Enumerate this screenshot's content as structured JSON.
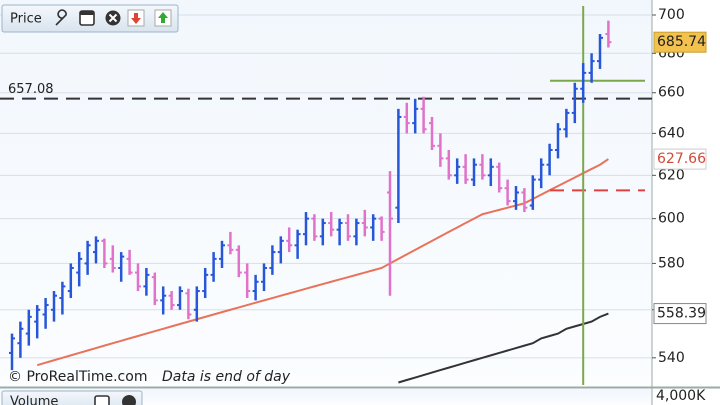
{
  "chart_data": {
    "type": "ohlc",
    "title": "Price",
    "yscale": "log",
    "ylim": [
      529,
      708
    ],
    "yticks": [
      540,
      560,
      580,
      600,
      620,
      640,
      660,
      680,
      700
    ],
    "grid": true,
    "up_color": "#2757d8",
    "down_color": "#e072c9",
    "ohlc": [
      [
        542,
        550,
        535,
        548
      ],
      [
        546,
        555,
        540,
        552
      ],
      [
        550,
        560,
        545,
        557
      ],
      [
        555,
        562,
        548,
        560
      ],
      [
        558,
        565,
        552,
        562
      ],
      [
        560,
        568,
        555,
        566
      ],
      [
        565,
        572,
        558,
        570
      ],
      [
        568,
        580,
        565,
        578
      ],
      [
        576,
        585,
        570,
        582
      ],
      [
        580,
        590,
        575,
        588
      ],
      [
        585,
        592,
        580,
        590
      ],
      [
        590,
        591,
        578,
        580
      ],
      [
        582,
        588,
        576,
        578
      ],
      [
        578,
        585,
        572,
        583
      ],
      [
        582,
        586,
        575,
        576
      ],
      [
        576,
        580,
        568,
        570
      ],
      [
        570,
        578,
        566,
        575
      ],
      [
        574,
        576,
        562,
        564
      ],
      [
        564,
        570,
        558,
        566
      ],
      [
        566,
        568,
        560,
        562
      ],
      [
        562,
        570,
        560,
        568
      ],
      [
        567,
        569,
        556,
        558
      ],
      [
        560,
        570,
        555,
        568
      ],
      [
        568,
        578,
        565,
        575
      ],
      [
        575,
        585,
        572,
        582
      ],
      [
        582,
        590,
        578,
        588
      ],
      [
        588,
        594,
        584,
        586
      ],
      [
        586,
        588,
        574,
        576
      ],
      [
        576,
        580,
        565,
        568
      ],
      [
        568,
        575,
        564,
        572
      ],
      [
        572,
        580,
        568,
        578
      ],
      [
        578,
        588,
        575,
        585
      ],
      [
        585,
        592,
        580,
        590
      ],
      [
        590,
        596,
        585,
        588
      ],
      [
        588,
        595,
        582,
        593
      ],
      [
        593,
        603,
        588,
        600
      ],
      [
        600,
        602,
        590,
        592
      ],
      [
        592,
        600,
        588,
        598
      ],
      [
        598,
        603,
        592,
        595
      ],
      [
        595,
        600,
        588,
        598
      ],
      [
        598,
        602,
        590,
        592
      ],
      [
        592,
        600,
        588,
        598
      ],
      [
        598,
        604,
        592,
        596
      ],
      [
        596,
        602,
        590,
        600
      ],
      [
        600,
        601,
        590,
        594
      ],
      [
        612,
        622,
        566,
        600
      ],
      [
        605,
        652,
        598,
        648
      ],
      [
        648,
        655,
        640,
        645
      ],
      [
        645,
        657,
        640,
        652
      ],
      [
        652,
        658,
        640,
        642
      ],
      [
        645,
        648,
        632,
        634
      ],
      [
        634,
        640,
        624,
        628
      ],
      [
        628,
        632,
        618,
        620
      ],
      [
        620,
        628,
        616,
        624
      ],
      [
        624,
        630,
        616,
        618
      ],
      [
        618,
        628,
        615,
        625
      ],
      [
        625,
        630,
        618,
        620
      ],
      [
        620,
        628,
        615,
        624
      ],
      [
        624,
        626,
        612,
        614
      ],
      [
        614,
        618,
        606,
        608
      ],
      [
        608,
        615,
        604,
        612
      ],
      [
        612,
        614,
        603,
        605
      ],
      [
        606,
        620,
        604,
        618
      ],
      [
        618,
        628,
        614,
        625
      ],
      [
        625,
        635,
        620,
        632
      ],
      [
        632,
        645,
        628,
        642
      ],
      [
        642,
        652,
        638,
        650
      ],
      [
        650,
        665,
        645,
        662
      ],
      [
        662,
        675,
        655,
        670
      ],
      [
        670,
        680,
        665,
        676
      ],
      [
        676,
        690,
        672,
        688
      ],
      [
        690,
        697,
        683,
        685.74
      ]
    ],
    "lines": [
      {
        "color": "#e8735a",
        "values": [
          null,
          null,
          null,
          537,
          538,
          539,
          540,
          541,
          542,
          543,
          544,
          545,
          546,
          547,
          548,
          549,
          550,
          551,
          552,
          553,
          554,
          555,
          556,
          557,
          558,
          559,
          560,
          561,
          562,
          563,
          564,
          565,
          566,
          567,
          568,
          569,
          570,
          571,
          572,
          573,
          574,
          575,
          576,
          577,
          578,
          580,
          582,
          584,
          586,
          588,
          590,
          592,
          594,
          596,
          598,
          600,
          602,
          603,
          604,
          605,
          606,
          607,
          609,
          611,
          613,
          615,
          617,
          619,
          621,
          623,
          625,
          627.66
        ]
      },
      {
        "color": "#333333",
        "values": [
          null,
          null,
          null,
          null,
          null,
          null,
          null,
          null,
          null,
          null,
          null,
          null,
          null,
          null,
          null,
          null,
          null,
          null,
          null,
          null,
          null,
          null,
          null,
          null,
          null,
          null,
          null,
          null,
          null,
          null,
          null,
          null,
          null,
          null,
          null,
          null,
          null,
          null,
          null,
          null,
          null,
          null,
          null,
          null,
          null,
          null,
          530,
          531,
          532,
          533,
          534,
          535,
          536,
          537,
          538,
          539,
          540,
          541,
          542,
          543,
          544,
          545,
          546,
          548,
          549,
          550,
          552,
          553,
          554,
          555,
          557,
          558.39
        ]
      }
    ],
    "hlines": [
      {
        "value": 657.08,
        "color": "#333333",
        "dash": true,
        "labeled": true
      },
      {
        "value": 666,
        "color": "#7aa84a",
        "dash": false,
        "labeled": false
      },
      {
        "value": 613,
        "color": "#e04040",
        "dash": true,
        "labeled": false
      }
    ],
    "vline": {
      "x": 68,
      "color": "#7aa84a"
    },
    "credit": "© ProRealTime.com",
    "note": "Data is end of day",
    "volume_panel": {
      "title": "Volume",
      "yticks": [
        {
          "value": 4000000,
          "label": "4,000K"
        }
      ]
    }
  }
}
